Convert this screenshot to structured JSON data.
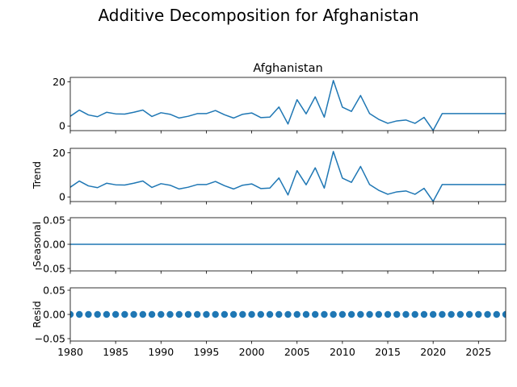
{
  "figure": {
    "suptitle": "Additive Decomposition for Afghanistan",
    "background": "#ffffff",
    "line_color": "#1f77b4"
  },
  "chart_data": [
    {
      "type": "line",
      "title": "Afghanistan",
      "ylabel": "",
      "xlim": [
        1980,
        2028
      ],
      "ylim": [
        -2.1,
        22.0
      ],
      "yticks": [
        0,
        20
      ],
      "ytick_labels": [
        "0",
        "20"
      ],
      "xtick_labels_visible": false,
      "series": [
        {
          "x": [
            1980,
            1981,
            1982,
            1983,
            1984,
            1985,
            1986,
            1987,
            1988,
            1989,
            1990,
            1991,
            1992,
            1993,
            1994,
            1995,
            1996,
            1997,
            1998,
            1999,
            2000,
            2001,
            2002,
            2003,
            2004,
            2005,
            2006,
            2007,
            2008,
            2009,
            2010,
            2011,
            2012,
            2013,
            2014,
            2015,
            2016,
            2017,
            2018,
            2019,
            2020,
            2021,
            2022,
            2023,
            2024,
            2025,
            2026,
            2027,
            2028
          ],
          "y": [
            4.4,
            7.2,
            5.0,
            4.2,
            6.2,
            5.5,
            5.4,
            6.2,
            7.2,
            4.3,
            6.0,
            5.3,
            3.6,
            4.4,
            5.6,
            5.6,
            7.0,
            5.1,
            3.6,
            5.3,
            5.9,
            3.8,
            4.0,
            8.6,
            0.9,
            11.9,
            5.5,
            13.2,
            4.0,
            20.6,
            8.5,
            6.6,
            13.8,
            5.6,
            3.0,
            1.2,
            2.3,
            2.7,
            1.2,
            3.9,
            -2.0,
            5.6,
            5.6,
            5.6,
            5.6,
            5.6,
            5.6,
            5.6,
            5.6
          ]
        }
      ]
    },
    {
      "type": "line",
      "title": "",
      "ylabel": "Trend",
      "xlim": [
        1980,
        2028
      ],
      "ylim": [
        -2.1,
        22.0
      ],
      "yticks": [
        0,
        20
      ],
      "ytick_labels": [
        "0",
        "20"
      ],
      "xtick_labels_visible": false,
      "series": [
        {
          "x": [
            1980,
            1981,
            1982,
            1983,
            1984,
            1985,
            1986,
            1987,
            1988,
            1989,
            1990,
            1991,
            1992,
            1993,
            1994,
            1995,
            1996,
            1997,
            1998,
            1999,
            2000,
            2001,
            2002,
            2003,
            2004,
            2005,
            2006,
            2007,
            2008,
            2009,
            2010,
            2011,
            2012,
            2013,
            2014,
            2015,
            2016,
            2017,
            2018,
            2019,
            2020,
            2021,
            2022,
            2023,
            2024,
            2025,
            2026,
            2027,
            2028
          ],
          "y": [
            4.4,
            7.2,
            5.0,
            4.2,
            6.2,
            5.5,
            5.4,
            6.2,
            7.2,
            4.3,
            6.0,
            5.3,
            3.6,
            4.4,
            5.6,
            5.6,
            7.0,
            5.1,
            3.6,
            5.3,
            5.9,
            3.8,
            4.0,
            8.6,
            0.9,
            11.9,
            5.5,
            13.2,
            4.0,
            20.6,
            8.5,
            6.6,
            13.8,
            5.6,
            3.0,
            1.2,
            2.3,
            2.7,
            1.2,
            3.9,
            -2.0,
            5.6,
            5.6,
            5.6,
            5.6,
            5.6,
            5.6,
            5.6,
            5.6
          ]
        }
      ]
    },
    {
      "type": "line",
      "title": "",
      "ylabel": "Seasonal",
      "xlim": [
        1980,
        2028
      ],
      "ylim": [
        -0.055,
        0.055
      ],
      "yticks": [
        -0.05,
        0.0,
        0.05
      ],
      "ytick_labels": [
        "−0.05",
        "0.00",
        "0.05"
      ],
      "xtick_labels_visible": false,
      "series": [
        {
          "x": [
            1980,
            2028
          ],
          "y": [
            0.0,
            0.0
          ]
        }
      ]
    },
    {
      "type": "scatter",
      "title": "",
      "ylabel": "Resid",
      "xlim": [
        1980,
        2028
      ],
      "ylim": [
        -0.055,
        0.055
      ],
      "yticks": [
        -0.05,
        0.0,
        0.05
      ],
      "ytick_labels": [
        "−0.05",
        "0.00",
        "0.05"
      ],
      "xtick_labels_visible": true,
      "xticks": [
        1980,
        1985,
        1990,
        1995,
        2000,
        2005,
        2010,
        2015,
        2020,
        2025
      ],
      "xtick_labels": [
        "1980",
        "1985",
        "1990",
        "1995",
        "2000",
        "2005",
        "2010",
        "2015",
        "2020",
        "2025"
      ],
      "series": [
        {
          "x": [
            1980,
            1981,
            1982,
            1983,
            1984,
            1985,
            1986,
            1987,
            1988,
            1989,
            1990,
            1991,
            1992,
            1993,
            1994,
            1995,
            1996,
            1997,
            1998,
            1999,
            2000,
            2001,
            2002,
            2003,
            2004,
            2005,
            2006,
            2007,
            2008,
            2009,
            2010,
            2011,
            2012,
            2013,
            2014,
            2015,
            2016,
            2017,
            2018,
            2019,
            2020,
            2021,
            2022,
            2023,
            2024,
            2025,
            2026,
            2027,
            2028
          ],
          "y": [
            0,
            0,
            0,
            0,
            0,
            0,
            0,
            0,
            0,
            0,
            0,
            0,
            0,
            0,
            0,
            0,
            0,
            0,
            0,
            0,
            0,
            0,
            0,
            0,
            0,
            0,
            0,
            0,
            0,
            0,
            0,
            0,
            0,
            0,
            0,
            0,
            0,
            0,
            0,
            0,
            0,
            0,
            0,
            0,
            0,
            0,
            0,
            0,
            0
          ]
        }
      ]
    }
  ]
}
